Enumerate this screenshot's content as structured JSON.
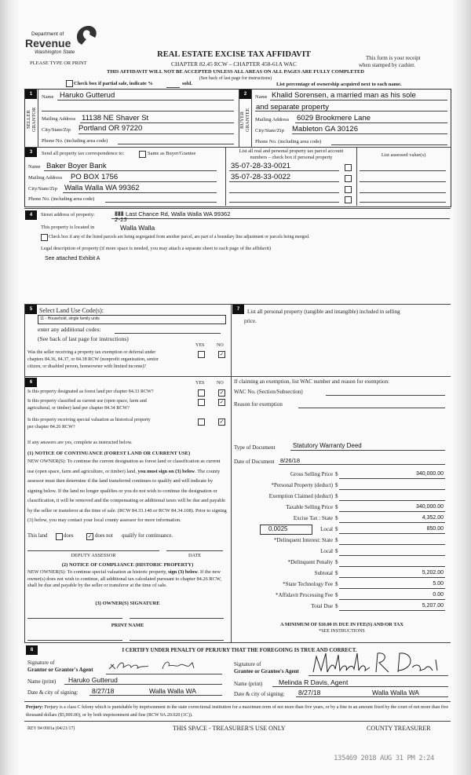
{
  "header": {
    "agency_line1": "Department of",
    "agency_line2": "Revenue",
    "agency_line3": "Washington State",
    "title": "REAL ESTATE EXCISE TAX AFFIDAVIT",
    "chapter": "CHAPTER 82.45 RCW – CHAPTER 458-61A WAC",
    "please_type": "PLEASE TYPE OR PRINT",
    "receipt_line1": "This form is your receipt",
    "receipt_line2": "when stamped by cashier.",
    "warning": "THIS AFFIDAVIT WILL NOT BE ACCEPTED UNLESS ALL AREAS ON ALL PAGES ARE FULLY COMPLETED",
    "instructions": "(See back of last page for instructions)",
    "partial_sale_label": "Check box if partial sale, indicate %",
    "partial_sale_sold": "sold.",
    "partial_sale_checked": false,
    "ownership_note": "List percentage of ownership acquired next to each name."
  },
  "seller": {
    "badge": "1",
    "side_label": "SELLER GRANTOR",
    "name_label": "Name",
    "name": "Haruko Gutterud",
    "mailing_label": "Mailing Address",
    "mailing": "11138 NE Shaver St",
    "city_label": "City/State/Zip",
    "city": "Portland OR 97220",
    "phone_label": "Phone No. (including area code)"
  },
  "buyer": {
    "badge": "2",
    "side_label": "BUYER GRANTEE",
    "name_label": "Name",
    "name_line1": "Khalid Sorensen, a married man as his sole",
    "name_line2": "and separate property",
    "mailing_label": "Mailing Address",
    "mailing": "6029 Brookmere Lane",
    "city_label": "City/State/Zip",
    "city": "Mableton GA 30126",
    "phone_label": "Phone No. (including area code)"
  },
  "correspondence": {
    "badge": "3",
    "label": "Send all property tax correspondence to:",
    "same_as_buyer_label": "Same as Buyer/Grantee",
    "same_as_buyer_checked": false,
    "name_label": "Name",
    "name": "Baker Boyer Bank",
    "mailing_label": "Mailing Address",
    "mailing": "PO BOX 1756",
    "city_label": "City/State/Zip",
    "city": "Walla Walla WA 99362",
    "phone_label": "Phone No. (including area code)",
    "parcel_header_line1": "List all real and personal property tax parcel account",
    "parcel_header_line2": "numbers – check box if personal property",
    "assessed_header": "List assessed value(s)",
    "parcels": [
      {
        "number": "35-07-28-33-0021",
        "personal": false
      },
      {
        "number": "35-07-28-33-0022",
        "personal": false
      },
      {
        "number": "",
        "personal": false
      },
      {
        "number": "",
        "personal": false
      }
    ]
  },
  "property": {
    "badge": "4",
    "street_label": "Street address of property:",
    "street": "Last Chance Rd, Walla Walla WA 99362",
    "located_label": "This property is located in",
    "located": "Walla Walla",
    "located_annotation": "2-15",
    "segregated_label": "Check box if any of the listed parcels are being segregated from another parcel, are part of a boundary line adjustment or parcels being merged.",
    "segregated_checked": false,
    "legal_label": "Legal description of property (if more space is needed, you may attach a separate sheet to each page of the affidavit)",
    "legal": "See attached Exhibit A"
  },
  "land_use": {
    "badge": "5",
    "label": "Select Land Use Code(s):",
    "code": "11 - Household, single family units",
    "additional_label": "enter any additional codes:",
    "instructions": "(See back of last page for instructions)",
    "yes": "YES",
    "no": "NO",
    "q_exemption_l1": "Was the seller receiving a property tax exemption or deferral under",
    "q_exemption_l2": "chapters 84.36, 84.37, or 84.38 RCW (nonprofit organization, senior",
    "q_exemption_l3": "citizen, or disabled person, homeowner with limited income)?",
    "q_exemption_yes": false,
    "q_exemption_no": true
  },
  "section6": {
    "badge": "6",
    "yes": "YES",
    "no": "NO",
    "q1": "Is this property designated as forest land per chapter 84.33 RCW?",
    "q1_yes": false,
    "q1_no": true,
    "q2_l1": "Is this property classified as current use (open space, farm and",
    "q2_l2": "agricultural, or timber) land per chapter 84.34 RCW?",
    "q2_yes": false,
    "q2_no": true,
    "q3_l1": "Is this property receiving special valuation as historical property",
    "q3_l2": "per chapter 84.26 RCW?",
    "q3_yes": false,
    "q3_no": true,
    "if_yes": "If any answers are yes, complete as instructed below.",
    "notice1_title": "(1) NOTICE OF CONTINUANCE (FOREST LAND OR CURRENT USE)",
    "notice1_a": "NEW OWNER(S): To continue the current designation as forest land or classification as current use (open space, farm and agriculture, or timber) land, ",
    "notice1_bold": "you must sign on (3) below",
    "notice1_b": ". The county assessor must then determine if the land transferred continues to qualify and will indicate by signing below. If the land no longer qualifies or you do not wish to continue the designation or classification, it will be removed and the compensating or additional taxes will be due and payable by the seller or transferor at the time of sale. (RCW 84.33.140 or RCW 84.34.108). Prior to signing (3) below, you may contact your local county assessor for more information.",
    "this_land": "This land",
    "does": "does",
    "does_checked": false,
    "does_not": "does not",
    "does_not_checked": true,
    "qualify": "qualify for continuance.",
    "deputy_assessor": "DEPUTY ASSESSOR",
    "date": "DATE",
    "notice2_title": "(2) NOTICE OF COMPLIANCE (HISTORIC PROPERTY)",
    "notice2_a": "NEW OWNER(S): To continue special valuation as historic property, ",
    "notice2_bold": "sign (3) below",
    "notice2_b": ". If the new owner(s) does not wish to continue, all additional tax calculated pursuant to chapter 84.26 RCW, shall be due and payable by the seller or transferor at the time of sale.",
    "owner_signature": "(3) OWNER(S) SIGNATURE",
    "print_name": "PRINT NAME"
  },
  "section7": {
    "badge": "7",
    "label_l1": "List all  personal property (tangible and intangible) included in selling",
    "label_l2": "price.",
    "exemption_label": "If claiming an exemption, list WAC number and reason for exemption:",
    "wac_label": "WAC No. (Section/Subsection)",
    "reason_label": "Reason for exemption",
    "doc_type_label": "Type of Document",
    "doc_type": "Statutory Warranty Deed",
    "doc_date_label": "Date of Document",
    "doc_date": "8/26/18",
    "local_rate": "0.0025",
    "amounts": [
      {
        "label": "Gross Selling Price",
        "value": "340,000.00"
      },
      {
        "label": "*Personal Property (deduct)",
        "value": ""
      },
      {
        "label": "Exemption Claimed (deduct)",
        "value": ""
      },
      {
        "label": "Taxable Selling Price",
        "value": "340,000.00"
      },
      {
        "label": "Excise Tax : State",
        "value": "4,352.00"
      },
      {
        "label": "Local",
        "value": "850.00"
      },
      {
        "label": "*Delinquent Interest: State",
        "value": ""
      },
      {
        "label": "Local",
        "value": ""
      },
      {
        "label": "*Delinquent Penalty",
        "value": ""
      },
      {
        "label": "Subtotal",
        "value": "5,202.00"
      },
      {
        "label": "*State Technology Fee",
        "value": "5.00"
      },
      {
        "label": "*Affidavit Processing Fee",
        "value": "0.00"
      },
      {
        "label": "Total Due",
        "value": "5,207.00"
      }
    ],
    "currency": "$",
    "minimum_note": "A MINIMUM OF $10.00 IS DUE IN FEE(S) AND/OR TAX",
    "see_instructions": "*SEE INSTRUCTIONS"
  },
  "section8": {
    "badge": "8",
    "certify": "I CERTIFY UNDER PENALTY OF PERJURY THAT THE FOREGOING IS TRUE AND CORRECT.",
    "signature_of": "Signature of",
    "grantor_agent": "Grantor or Grantor's Agent",
    "grantee_agent": "Grantee or Grantee's Agent",
    "name_print_label": "Name (print)",
    "grantor_name": "Haruko Gutterud",
    "grantee_name": "Melinda R Davis, Agent",
    "date_city_label": "Date & city of signing:",
    "grantor_date": "8/27/18",
    "grantor_city": "Walla Walla WA",
    "grantee_date": "8/27/18",
    "grantee_city": "Walla Walla WA"
  },
  "footer": {
    "perjury_bold": "Perjury:",
    "perjury_text": " Perjury is a class C felony which is punishable by imprisonment in the state correctional institution for a maximum term of not more than five years, or by a fine in an amount fixed by the court of not more than five thousand dollars ($5,000.00), or by both imprisonment and fine (RCW 9A.20.020 (1C)).",
    "form_number": "REV 84 0001a (04/21/17)",
    "treasurer_space": "THIS SPACE - TREASURER'S USE ONLY",
    "county_treasurer": "COUNTY TREASURER",
    "stamp": "135469 2018 AUG 31 PM 2:24"
  }
}
